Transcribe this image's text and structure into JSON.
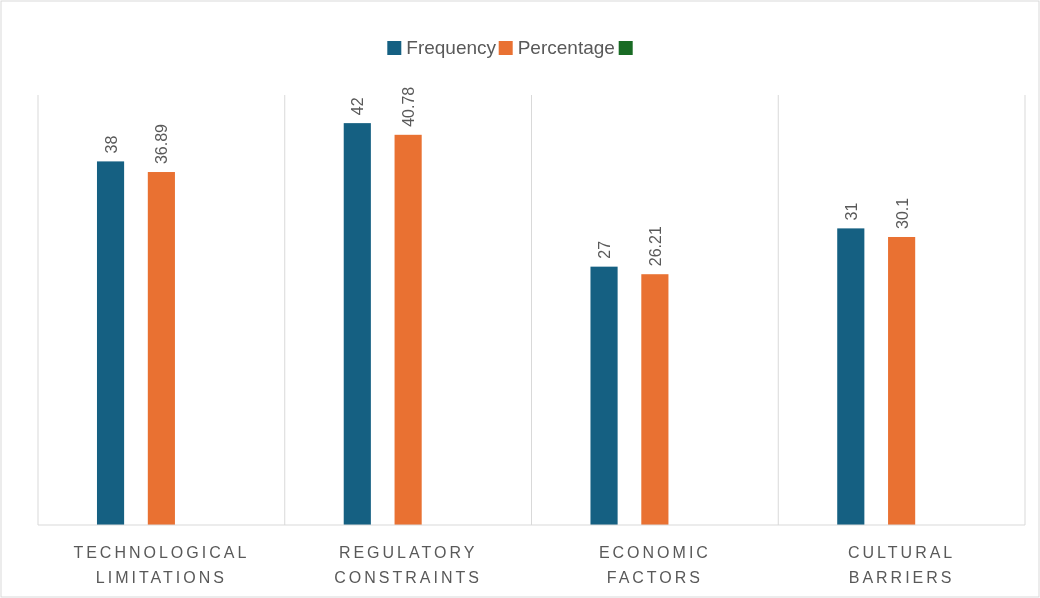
{
  "chart_data": {
    "type": "bar",
    "categories": [
      "TECHNOLOGICAL LIMITATIONS",
      "REGULATORY CONSTRAINTS",
      "ECONOMIC FACTORS",
      "CULTURAL BARRIERS"
    ],
    "series": [
      {
        "name": "Frequency",
        "color": "#156082",
        "values": [
          38,
          42,
          27,
          31
        ]
      },
      {
        "name": "Percentage",
        "color": "#e97132",
        "values": [
          36.89,
          40.78,
          26.21,
          30.1
        ]
      },
      {
        "color": "#196b24",
        "values": [
          null,
          null,
          null,
          null
        ]
      }
    ],
    "data_labels": true,
    "legend": "top",
    "grid": "x"
  }
}
